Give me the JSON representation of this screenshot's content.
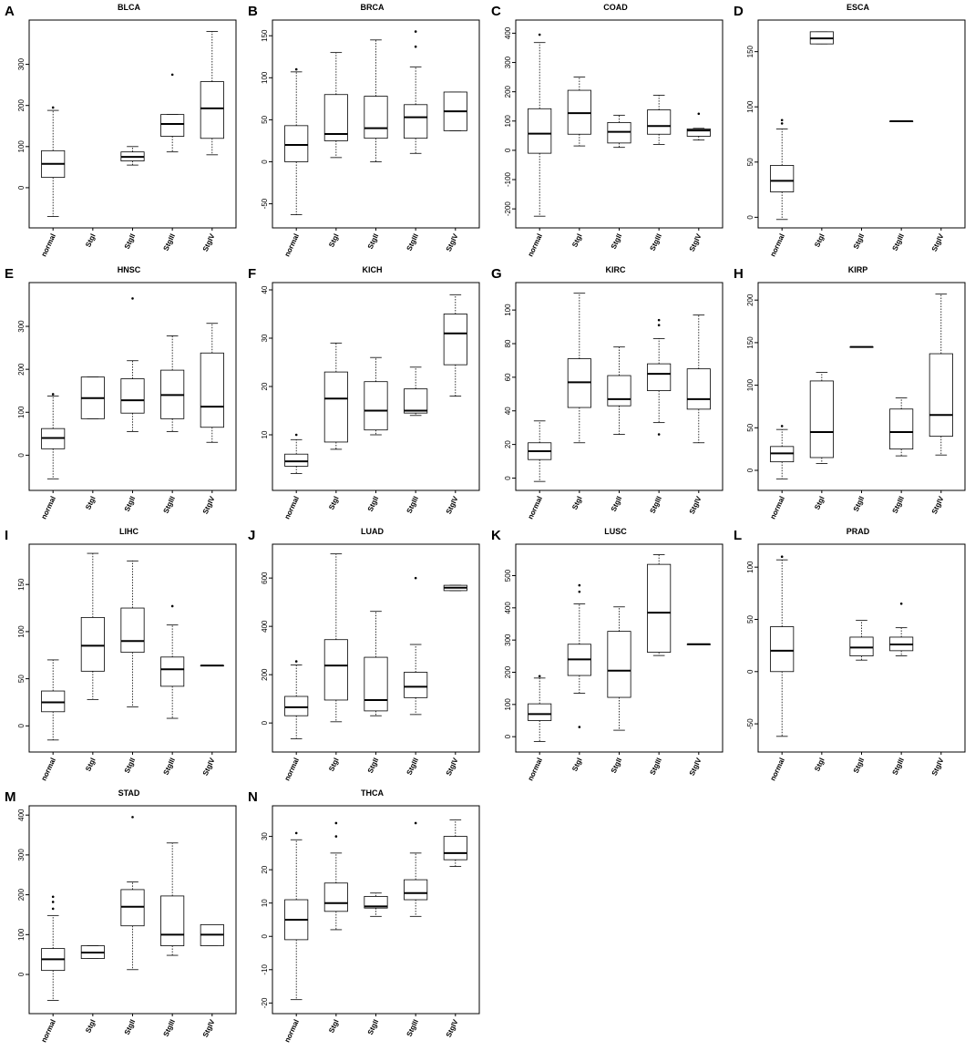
{
  "chart_data": [
    {
      "type": "boxplot",
      "letter": "A",
      "title": "BLCA",
      "categories": [
        "normal",
        "StgI",
        "StgII",
        "StgIII",
        "StgIV"
      ],
      "ylim": [
        -80,
        390
      ],
      "yticks": [
        0,
        100,
        200,
        300
      ],
      "boxes": [
        {
          "min": -70,
          "q1": 25,
          "med": 58,
          "q3": 90,
          "max": 188,
          "outliers": [
            195
          ]
        },
        null,
        {
          "min": 55,
          "q1": 65,
          "med": 75,
          "q3": 87,
          "max": 100,
          "outliers": []
        },
        {
          "min": 87,
          "q1": 125,
          "med": 155,
          "q3": 178,
          "max": 178,
          "outliers": [
            275
          ]
        },
        {
          "min": 80,
          "q1": 120,
          "med": 193,
          "q3": 258,
          "max": 380,
          "outliers": []
        }
      ]
    },
    {
      "type": "boxplot",
      "letter": "B",
      "title": "BRCA",
      "categories": [
        "normal",
        "StgI",
        "StgII",
        "StgIII",
        "StgIV"
      ],
      "ylim": [
        -70,
        160
      ],
      "yticks": [
        -50,
        0,
        50,
        100,
        150
      ],
      "boxes": [
        {
          "min": -63,
          "q1": 0,
          "med": 20,
          "q3": 43,
          "max": 107,
          "outliers": [
            110
          ]
        },
        {
          "min": 5,
          "q1": 25,
          "med": 33,
          "q3": 80,
          "max": 130,
          "outliers": []
        },
        {
          "min": 0,
          "q1": 28,
          "med": 40,
          "q3": 78,
          "max": 145,
          "outliers": []
        },
        {
          "min": 10,
          "q1": 28,
          "med": 53,
          "q3": 68,
          "max": 113,
          "outliers": [
            137,
            155
          ]
        },
        {
          "min": 37,
          "q1": 37,
          "med": 60,
          "q3": 83,
          "max": 83,
          "outliers": []
        }
      ]
    },
    {
      "type": "boxplot",
      "letter": "C",
      "title": "COAD",
      "categories": [
        "normal",
        "StgI",
        "StgII",
        "StgIII",
        "StgIV"
      ],
      "ylim": [
        -240,
        420
      ],
      "yticks": [
        -200,
        -100,
        0,
        100,
        200,
        300,
        400
      ],
      "boxes": [
        {
          "min": -225,
          "q1": -10,
          "med": 57,
          "q3": 142,
          "max": 368,
          "outliers": [
            395
          ]
        },
        {
          "min": 15,
          "q1": 55,
          "med": 127,
          "q3": 205,
          "max": 250,
          "outliers": []
        },
        {
          "min": 10,
          "q1": 25,
          "med": 63,
          "q3": 95,
          "max": 120,
          "outliers": []
        },
        {
          "min": 20,
          "q1": 55,
          "med": 83,
          "q3": 138,
          "max": 188,
          "outliers": []
        },
        {
          "min": 35,
          "q1": 48,
          "med": 68,
          "q3": 73,
          "max": 75,
          "outliers": [
            125
          ]
        }
      ]
    },
    {
      "type": "boxplot",
      "letter": "D",
      "title": "ESCA",
      "categories": [
        "normal",
        "StgI",
        "StgII",
        "StgIII",
        "StgIV"
      ],
      "ylim": [
        -3,
        172
      ],
      "yticks": [
        0,
        50,
        100,
        150
      ],
      "boxes": [
        {
          "min": -2,
          "q1": 23,
          "med": 33,
          "q3": 47,
          "max": 80,
          "outliers": [
            85,
            88
          ]
        },
        {
          "min": 157,
          "q1": 157,
          "med": 162,
          "q3": 168,
          "max": 168,
          "outliers": []
        },
        null,
        {
          "min": 87,
          "q1": 87,
          "med": 87,
          "q3": 87,
          "max": 87,
          "outliers": []
        },
        null
      ]
    },
    {
      "type": "boxplot",
      "letter": "E",
      "title": "HNSC",
      "categories": [
        "normal",
        "StgI",
        "StgII",
        "StgIII",
        "StgIV"
      ],
      "ylim": [
        -65,
        385
      ],
      "yticks": [
        0,
        100,
        200,
        300
      ],
      "boxes": [
        {
          "min": -55,
          "q1": 15,
          "med": 40,
          "q3": 62,
          "max": 138,
          "outliers": [
            142
          ]
        },
        {
          "min": 85,
          "q1": 85,
          "med": 133,
          "q3": 182,
          "max": 182,
          "outliers": []
        },
        {
          "min": 55,
          "q1": 98,
          "med": 128,
          "q3": 178,
          "max": 220,
          "outliers": [
            365
          ]
        },
        {
          "min": 55,
          "q1": 85,
          "med": 140,
          "q3": 198,
          "max": 278,
          "outliers": []
        },
        {
          "min": 30,
          "q1": 65,
          "med": 113,
          "q3": 238,
          "max": 307,
          "outliers": []
        }
      ]
    },
    {
      "type": "boxplot",
      "letter": "F",
      "title": "KICH",
      "categories": [
        "normal",
        "StgI",
        "StgII",
        "StgIII",
        "StgIV"
      ],
      "ylim": [
        0,
        40
      ],
      "yticks": [
        10,
        20,
        30,
        40
      ],
      "boxes": [
        {
          "min": 2,
          "q1": 3.5,
          "med": 4.5,
          "q3": 6,
          "max": 9,
          "outliers": [
            10
          ]
        },
        {
          "min": 7,
          "q1": 8.5,
          "med": 17.5,
          "q3": 23,
          "max": 29,
          "outliers": []
        },
        {
          "min": 10,
          "q1": 11,
          "med": 15,
          "q3": 21,
          "max": 26,
          "outliers": []
        },
        {
          "min": 14,
          "q1": 14.5,
          "med": 15,
          "q3": 19.5,
          "max": 24,
          "outliers": []
        },
        {
          "min": 18,
          "q1": 24.5,
          "med": 31,
          "q3": 35,
          "max": 39,
          "outliers": []
        }
      ]
    },
    {
      "type": "boxplot",
      "letter": "G",
      "title": "KIRC",
      "categories": [
        "normal",
        "StgI",
        "StgII",
        "StgIII",
        "StgIV"
      ],
      "ylim": [
        -3,
        112
      ],
      "yticks": [
        0,
        20,
        40,
        60,
        80,
        100
      ],
      "boxes": [
        {
          "min": -2,
          "q1": 11,
          "med": 16,
          "q3": 21,
          "max": 34,
          "outliers": []
        },
        {
          "min": 21,
          "q1": 42,
          "med": 57,
          "q3": 71,
          "max": 110,
          "outliers": []
        },
        {
          "min": 26,
          "q1": 43,
          "med": 47,
          "q3": 61,
          "max": 78,
          "outliers": []
        },
        {
          "min": 33,
          "q1": 52,
          "med": 62,
          "q3": 68,
          "max": 83,
          "outliers": [
            26,
            91,
            94
          ]
        },
        {
          "min": 21,
          "q1": 41,
          "med": 47,
          "q3": 65,
          "max": 97,
          "outliers": []
        }
      ]
    },
    {
      "type": "boxplot",
      "letter": "H",
      "title": "KIRP",
      "categories": [
        "normal",
        "StgI",
        "StgII",
        "StgIII",
        "StgIV"
      ],
      "ylim": [
        -15,
        212
      ],
      "yticks": [
        0,
        50,
        100,
        150,
        200
      ],
      "boxes": [
        {
          "min": -10,
          "q1": 10,
          "med": 20,
          "q3": 28,
          "max": 48,
          "outliers": [
            52
          ]
        },
        {
          "min": 8,
          "q1": 15,
          "med": 45,
          "q3": 105,
          "max": 115,
          "outliers": []
        },
        {
          "min": 145,
          "q1": 145,
          "med": 145,
          "q3": 145,
          "max": 145,
          "outliers": []
        },
        {
          "min": 17,
          "q1": 25,
          "med": 45,
          "q3": 72,
          "max": 85,
          "outliers": []
        },
        {
          "min": 18,
          "q1": 40,
          "med": 65,
          "q3": 137,
          "max": 207,
          "outliers": []
        }
      ]
    },
    {
      "type": "boxplot",
      "letter": "I",
      "title": "LIHC",
      "categories": [
        "normal",
        "StgI",
        "StgII",
        "StgIII",
        "StgIV"
      ],
      "ylim": [
        -20,
        185
      ],
      "yticks": [
        0,
        50,
        100,
        150
      ],
      "boxes": [
        {
          "min": -15,
          "q1": 15,
          "med": 25,
          "q3": 37,
          "max": 70,
          "outliers": []
        },
        {
          "min": 28,
          "q1": 58,
          "med": 85,
          "q3": 115,
          "max": 183,
          "outliers": []
        },
        {
          "min": 20,
          "q1": 78,
          "med": 90,
          "q3": 125,
          "max": 175,
          "outliers": []
        },
        {
          "min": 8,
          "q1": 42,
          "med": 60,
          "q3": 73,
          "max": 107,
          "outliers": [
            127
          ]
        },
        {
          "min": 64,
          "q1": 64,
          "med": 64,
          "q3": 64,
          "max": 64,
          "outliers": []
        }
      ]
    },
    {
      "type": "boxplot",
      "letter": "J",
      "title": "LUAD",
      "categories": [
        "normal",
        "StgI",
        "StgII",
        "StgIII",
        "StgIV"
      ],
      "ylim": [
        -90,
        710
      ],
      "yticks": [
        0,
        200,
        400,
        600
      ],
      "boxes": [
        {
          "min": -65,
          "q1": 30,
          "med": 65,
          "q3": 110,
          "max": 240,
          "outliers": [
            255
          ]
        },
        {
          "min": 5,
          "q1": 95,
          "med": 238,
          "q3": 345,
          "max": 700,
          "outliers": []
        },
        {
          "min": 30,
          "q1": 50,
          "med": 95,
          "q3": 272,
          "max": 462,
          "outliers": []
        },
        {
          "min": 35,
          "q1": 105,
          "med": 150,
          "q3": 210,
          "max": 325,
          "outliers": [
            600
          ]
        },
        {
          "min": 548,
          "q1": 548,
          "med": 560,
          "q3": 570,
          "max": 570,
          "outliers": []
        }
      ]
    },
    {
      "type": "boxplot",
      "letter": "K",
      "title": "LUSC",
      "categories": [
        "normal",
        "StgI",
        "StgII",
        "StgIII",
        "StgIV"
      ],
      "ylim": [
        -25,
        575
      ],
      "yticks": [
        0,
        100,
        200,
        300,
        400,
        500
      ],
      "boxes": [
        {
          "min": -15,
          "q1": 50,
          "med": 70,
          "q3": 102,
          "max": 182,
          "outliers": [
            188
          ]
        },
        {
          "min": 135,
          "q1": 190,
          "med": 240,
          "q3": 287,
          "max": 412,
          "outliers": [
            30,
            450,
            470
          ]
        },
        {
          "min": 20,
          "q1": 122,
          "med": 205,
          "q3": 327,
          "max": 403,
          "outliers": []
        },
        {
          "min": 252,
          "q1": 262,
          "med": 385,
          "q3": 535,
          "max": 565,
          "outliers": []
        },
        {
          "min": 287,
          "q1": 287,
          "med": 287,
          "q3": 287,
          "max": 287,
          "outliers": []
        }
      ]
    },
    {
      "type": "boxplot",
      "letter": "L",
      "title": "PRAD",
      "categories": [
        "normal",
        "StgI",
        "StgII",
        "StgIII",
        "StgIV"
      ],
      "ylim": [
        -70,
        115
      ],
      "yticks": [
        -50,
        0,
        50,
        100
      ],
      "boxes": [
        {
          "min": -62,
          "q1": 0,
          "med": 20,
          "q3": 43,
          "max": 107,
          "outliers": [
            110
          ]
        },
        null,
        {
          "min": 11,
          "q1": 15,
          "med": 23,
          "q3": 33,
          "max": 49,
          "outliers": []
        },
        {
          "min": 15,
          "q1": 20,
          "med": 26,
          "q3": 33,
          "max": 42,
          "outliers": [
            65
          ]
        },
        null
      ]
    },
    {
      "type": "boxplot",
      "letter": "M",
      "title": "STAD",
      "categories": [
        "normal",
        "StgI",
        "StgII",
        "StgIII",
        "StgIV"
      ],
      "ylim": [
        -80,
        405
      ],
      "yticks": [
        0,
        100,
        200,
        300,
        400
      ],
      "boxes": [
        {
          "min": -65,
          "q1": 10,
          "med": 38,
          "q3": 65,
          "max": 148,
          "outliers": [
            165,
            182,
            195
          ]
        },
        {
          "min": 40,
          "q1": 40,
          "med": 55,
          "q3": 72,
          "max": 72,
          "outliers": []
        },
        {
          "min": 12,
          "q1": 122,
          "med": 170,
          "q3": 213,
          "max": 232,
          "outliers": [
            395
          ]
        },
        {
          "min": 48,
          "q1": 72,
          "med": 100,
          "q3": 197,
          "max": 330,
          "outliers": []
        },
        {
          "min": 72,
          "q1": 72,
          "med": 100,
          "q3": 125,
          "max": 125,
          "outliers": []
        }
      ]
    },
    {
      "type": "boxplot",
      "letter": "N",
      "title": "THCA",
      "categories": [
        "normal",
        "StgI",
        "StgII",
        "StgIII",
        "StgIV"
      ],
      "ylim": [
        -21,
        37
      ],
      "yticks": [
        -20,
        -10,
        0,
        10,
        20,
        30
      ],
      "boxes": [
        {
          "min": -19,
          "q1": -1,
          "med": 5,
          "q3": 11,
          "max": 29,
          "outliers": [
            31
          ]
        },
        {
          "min": 2,
          "q1": 7.5,
          "med": 10,
          "q3": 16,
          "max": 25,
          "outliers": [
            30,
            34
          ]
        },
        {
          "min": 6,
          "q1": 8.5,
          "med": 9,
          "q3": 12,
          "max": 13,
          "outliers": []
        },
        {
          "min": 6,
          "q1": 11,
          "med": 13,
          "q3": 17,
          "max": 25,
          "outliers": [
            34
          ]
        },
        {
          "min": 21,
          "q1": 23,
          "med": 25,
          "q3": 30,
          "max": 35,
          "outliers": []
        }
      ]
    }
  ]
}
